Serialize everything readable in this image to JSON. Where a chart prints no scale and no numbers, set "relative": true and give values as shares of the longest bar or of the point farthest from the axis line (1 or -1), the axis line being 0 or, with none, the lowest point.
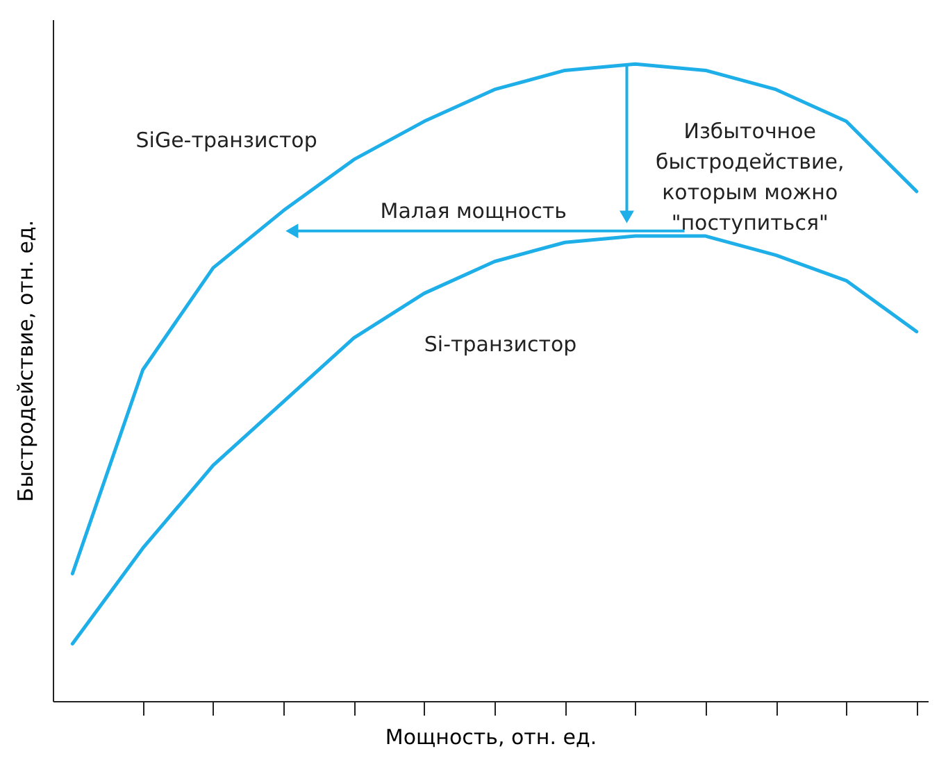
{
  "chart_data": {
    "type": "line",
    "relative": true,
    "xlabel": "Мощность, отн. ед.",
    "ylabel": "Быстродействие, отн. ед.",
    "categories": [
      null,
      null,
      null,
      null,
      null,
      null,
      null,
      null,
      null,
      null,
      null,
      null,
      null
    ],
    "series": [
      {
        "name": "SiGe-транзистор",
        "color": "#1eaee8",
        "values": [
          0.2,
          0.52,
          0.68,
          0.77,
          0.85,
          0.91,
          0.96,
          0.99,
          1.0,
          0.99,
          0.96,
          0.91,
          0.8
        ]
      },
      {
        "name": "Si-транзистор",
        "color": "#1eaee8",
        "values": [
          0.09,
          0.24,
          0.37,
          0.47,
          0.57,
          0.64,
          0.69,
          0.72,
          0.73,
          0.73,
          0.7,
          0.66,
          0.58
        ]
      }
    ],
    "annotations": [
      "Малая мощность",
      "Избыточное\nбыстродействие,\nкоторым можно\n\"поступиться\""
    ],
    "marker": "none",
    "line_style": "solid"
  }
}
